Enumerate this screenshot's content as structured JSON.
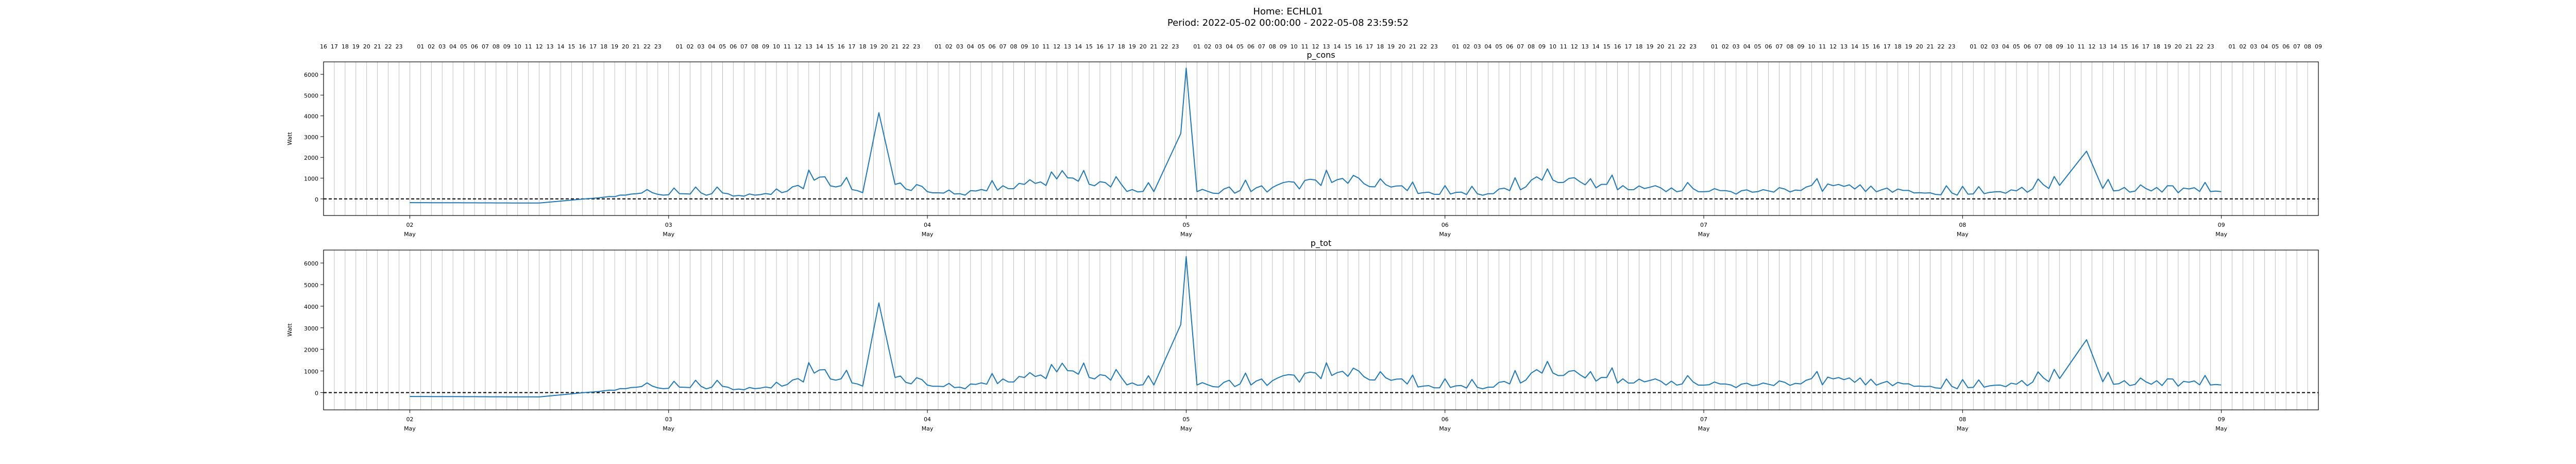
{
  "figure": {
    "title_line1": "Home: ECHL01",
    "title_line2": "Period: 2022-05-02 00:00:00 - 2022-05-08 23:59:52"
  },
  "colors": {
    "series": "#1f77b4",
    "zero_line": "#000000",
    "grid": "#b0b0b0"
  },
  "chart_data": [
    {
      "type": "line",
      "title": "p_cons",
      "ylabel": "Watt",
      "ylim": [
        -800,
        6600
      ],
      "yticks": [
        0,
        1000,
        2000,
        3000,
        4000,
        5000,
        6000
      ],
      "xlim": [
        "2022-05-01 16:00",
        "2022-05-09 09:00"
      ],
      "x_major_ticks": [
        {
          "date": "2022-05-02",
          "day": "02",
          "month": "May"
        },
        {
          "date": "2022-05-03",
          "day": "03",
          "month": "May"
        },
        {
          "date": "2022-05-04",
          "day": "04",
          "month": "May"
        },
        {
          "date": "2022-05-05",
          "day": "05",
          "month": "May"
        },
        {
          "date": "2022-05-06",
          "day": "06",
          "month": "May"
        },
        {
          "date": "2022-05-07",
          "day": "07",
          "month": "May"
        },
        {
          "date": "2022-05-08",
          "day": "08",
          "month": "May"
        },
        {
          "date": "2022-05-09",
          "day": "09",
          "month": "May"
        }
      ],
      "x_minor_ticks": "hourly, labelled 01-23 along the top axis",
      "grid": "vertical hourly gridlines",
      "reference_line": {
        "y": 0,
        "style": "dashed"
      },
      "series": [
        {
          "points": [
            [
              "2022-05-02 00:00",
              -180
            ],
            [
              "2022-05-02 06:00",
              -190
            ],
            [
              "2022-05-02 12:00",
              -200
            ],
            [
              "2022-05-02 16:00",
              -10
            ],
            [
              "2022-05-02 20:00",
              180
            ],
            [
              "2022-05-02 22:00",
              450
            ],
            [
              "2022-05-03 00:00",
              200
            ],
            [
              "2022-05-03 04:00",
              250
            ],
            [
              "2022-05-03 08:00",
              180
            ],
            [
              "2022-05-03 12:00",
              650
            ],
            [
              "2022-05-03 14:00",
              1050
            ],
            [
              "2022-05-03 18:00",
              300
            ],
            [
              "2022-05-03 19:30",
              4150
            ],
            [
              "2022-05-03 21:00",
              700
            ],
            [
              "2022-05-04 03:00",
              250
            ],
            [
              "2022-05-04 09:00",
              700
            ],
            [
              "2022-05-04 14:00",
              850
            ],
            [
              "2022-05-04 21:00",
              350
            ],
            [
              "2022-05-04 23:30",
              3150
            ],
            [
              "2022-05-05 00:00",
              6300
            ],
            [
              "2022-05-05 01:00",
              350
            ],
            [
              "2022-05-05 08:00",
              550
            ],
            [
              "2022-05-05 16:00",
              1000
            ],
            [
              "2022-05-05 22:00",
              300
            ],
            [
              "2022-05-06 04:00",
              250
            ],
            [
              "2022-05-06 09:00",
              900
            ],
            [
              "2022-05-06 15:00",
              700
            ],
            [
              "2022-05-06 22:00",
              400
            ],
            [
              "2022-05-07 05:00",
              350
            ],
            [
              "2022-05-07 13:00",
              600
            ],
            [
              "2022-05-07 20:00",
              300
            ],
            [
              "2022-05-08 02:00",
              250
            ],
            [
              "2022-05-08 09:00",
              650
            ],
            [
              "2022-05-08 11:30",
              2300
            ],
            [
              "2022-05-08 13:00",
              500
            ],
            [
              "2022-05-08 18:00",
              550
            ],
            [
              "2022-05-08 23:59",
              350
            ]
          ]
        }
      ]
    },
    {
      "type": "line",
      "title": "p_tot",
      "ylabel": "Watt",
      "ylim": [
        -800,
        6600
      ],
      "yticks": [
        0,
        1000,
        2000,
        3000,
        4000,
        5000,
        6000
      ],
      "xlim": [
        "2022-05-01 16:00",
        "2022-05-09 09:00"
      ],
      "x_major_ticks": [
        {
          "date": "2022-05-02",
          "day": "02",
          "month": "May"
        },
        {
          "date": "2022-05-03",
          "day": "03",
          "month": "May"
        },
        {
          "date": "2022-05-04",
          "day": "04",
          "month": "May"
        },
        {
          "date": "2022-05-05",
          "day": "05",
          "month": "May"
        },
        {
          "date": "2022-05-06",
          "day": "06",
          "month": "May"
        },
        {
          "date": "2022-05-07",
          "day": "07",
          "month": "May"
        },
        {
          "date": "2022-05-08",
          "day": "08",
          "month": "May"
        },
        {
          "date": "2022-05-09",
          "day": "09",
          "month": "May"
        }
      ],
      "grid": "vertical hourly gridlines",
      "reference_line": {
        "y": 0,
        "style": "dashed"
      },
      "series": [
        {
          "points": [
            [
              "2022-05-02 00:00",
              -180
            ],
            [
              "2022-05-02 06:00",
              -190
            ],
            [
              "2022-05-02 12:00",
              -200
            ],
            [
              "2022-05-02 16:00",
              -10
            ],
            [
              "2022-05-02 20:00",
              180
            ],
            [
              "2022-05-02 22:00",
              450
            ],
            [
              "2022-05-03 00:00",
              200
            ],
            [
              "2022-05-03 04:00",
              250
            ],
            [
              "2022-05-03 08:00",
              180
            ],
            [
              "2022-05-03 12:00",
              650
            ],
            [
              "2022-05-03 14:00",
              1050
            ],
            [
              "2022-05-03 18:00",
              300
            ],
            [
              "2022-05-03 19:30",
              4150
            ],
            [
              "2022-05-03 21:00",
              700
            ],
            [
              "2022-05-04 03:00",
              250
            ],
            [
              "2022-05-04 09:00",
              700
            ],
            [
              "2022-05-04 14:00",
              850
            ],
            [
              "2022-05-04 21:00",
              350
            ],
            [
              "2022-05-04 23:30",
              3150
            ],
            [
              "2022-05-05 00:00",
              6300
            ],
            [
              "2022-05-05 01:00",
              350
            ],
            [
              "2022-05-05 08:00",
              550
            ],
            [
              "2022-05-05 16:00",
              1000
            ],
            [
              "2022-05-05 22:00",
              300
            ],
            [
              "2022-05-06 04:00",
              250
            ],
            [
              "2022-05-06 09:00",
              900
            ],
            [
              "2022-05-06 15:00",
              700
            ],
            [
              "2022-05-06 22:00",
              400
            ],
            [
              "2022-05-07 05:00",
              350
            ],
            [
              "2022-05-07 13:00",
              600
            ],
            [
              "2022-05-07 20:00",
              300
            ],
            [
              "2022-05-08 02:00",
              250
            ],
            [
              "2022-05-08 09:00",
              650
            ],
            [
              "2022-05-08 11:30",
              2450
            ],
            [
              "2022-05-08 13:00",
              500
            ],
            [
              "2022-05-08 18:00",
              550
            ],
            [
              "2022-05-08 23:59",
              350
            ]
          ]
        }
      ]
    }
  ]
}
